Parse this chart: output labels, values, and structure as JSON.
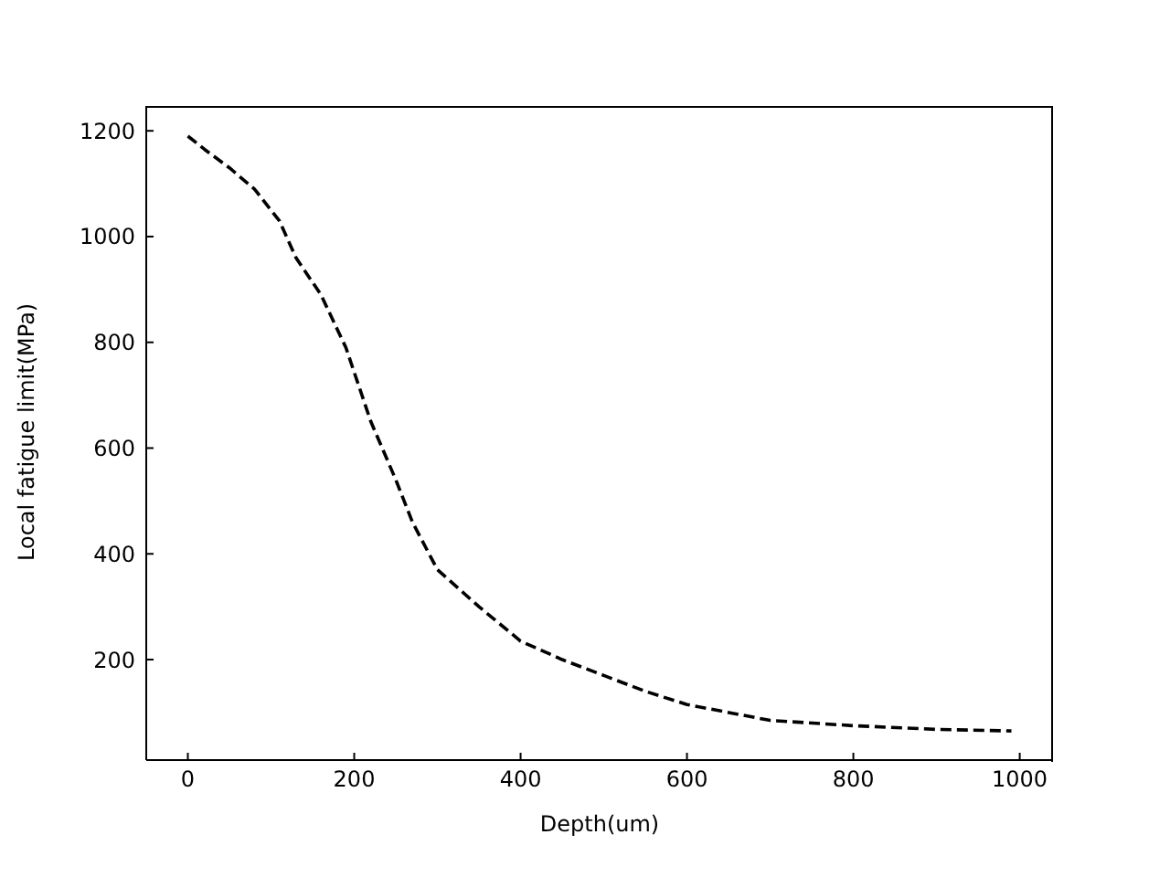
{
  "chart_data": {
    "type": "line",
    "xlabel": "Depth(um)",
    "ylabel": "Local fatigue limit(MPa)",
    "x": [
      0,
      20,
      50,
      80,
      100,
      110,
      130,
      160,
      190,
      220,
      250,
      270,
      300,
      350,
      400,
      450,
      500,
      550,
      600,
      650,
      700,
      800,
      900,
      990
    ],
    "series": [
      {
        "color": "#000000",
        "values": [
          1190,
          1165,
          1130,
          1090,
          1050,
          1030,
          960,
          890,
          790,
          650,
          540,
          460,
          370,
          300,
          235,
          200,
          170,
          140,
          115,
          100,
          85,
          75,
          68,
          65
        ]
      }
    ],
    "xlim": [
      -50,
      1040
    ],
    "ylim": [
      10,
      1247
    ],
    "xticks": [
      0,
      200,
      400,
      600,
      800,
      1000
    ],
    "yticks": [
      200,
      400,
      600,
      800,
      1000,
      1200
    ],
    "grid": false,
    "legend": false,
    "line_style": "dashed",
    "marker": "none"
  }
}
